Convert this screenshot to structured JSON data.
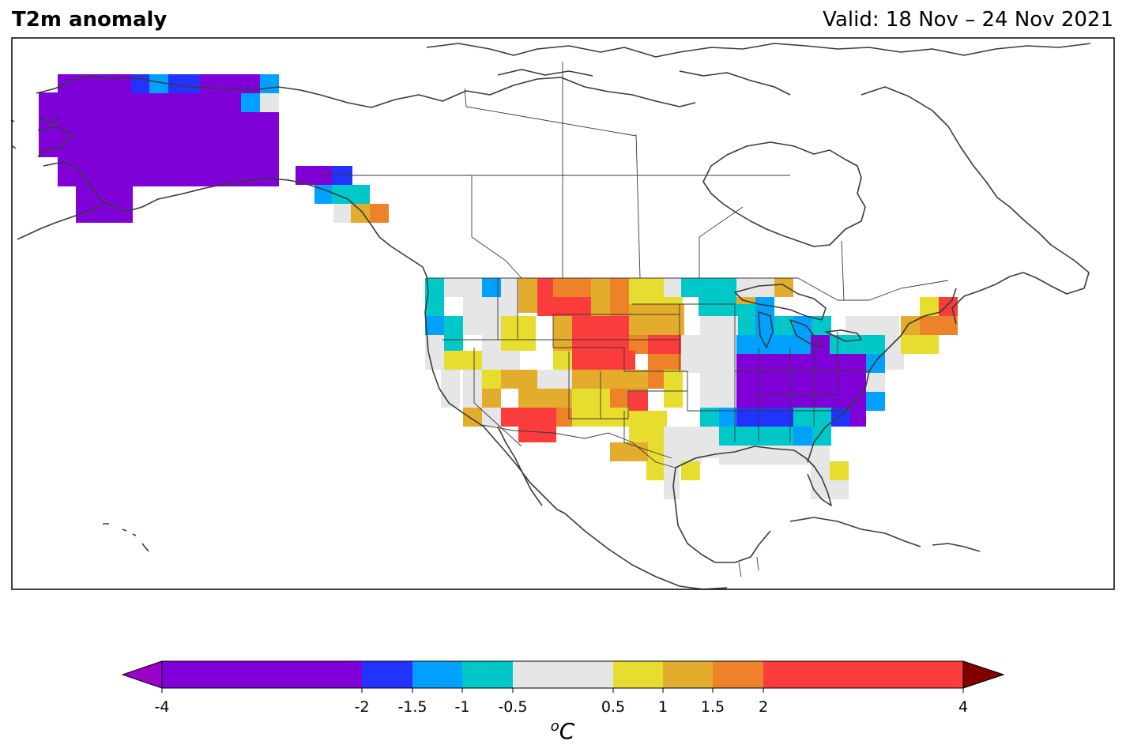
{
  "header": {
    "title": "T2m anomaly",
    "valid": "Valid: 18 Nov – 24 Nov 2021"
  },
  "colorbar": {
    "unit_base": "C",
    "unit_superscript": "o",
    "bounds": [
      -4,
      -2,
      -1.5,
      -1,
      -0.5,
      0.5,
      1,
      1.5,
      2,
      4
    ],
    "tick_labels": [
      "-4",
      "-2",
      "-1.5",
      "-1",
      "-0.5",
      "0.5",
      "1",
      "1.5",
      "2",
      "4"
    ],
    "colors": [
      "#8000d8",
      "#2233ff",
      "#00a0ff",
      "#00c8c8",
      "#e6e6e6",
      "#e6dd2e",
      "#e4ac2c",
      "#ee8228",
      "#fa3c3c"
    ],
    "under_color": "#9b00c8",
    "over_color": "#800000"
  },
  "chart_data": {
    "type": "heatmap",
    "title": "T2m anomaly",
    "subtitle": "Valid: 18 Nov – 24 Nov 2021",
    "colorbar_label": "oC",
    "region": "North America",
    "levels": [
      -4,
      -2,
      -1.5,
      -1,
      -0.5,
      0.5,
      1,
      1.5,
      2,
      4
    ],
    "regions": [
      {
        "area": "Alaska",
        "anomaly_class": "< -2"
      },
      {
        "area": "Southeast Alaska / coastal British Columbia",
        "anomaly_class": "-2 to 2"
      },
      {
        "area": "Pacific Northwest coast",
        "anomaly_class": "-1.5 to -0.5"
      },
      {
        "area": "Northern Rockies / Montana",
        "anomaly_class": "> 2"
      },
      {
        "area": "Colorado / Wyoming / Nebraska",
        "anomaly_class": "> 2"
      },
      {
        "area": "Arizona / southern California",
        "anomaly_class": "1.5 to > 2"
      },
      {
        "area": "Texas / New Mexico",
        "anomaly_class": "0.5 to 1.5"
      },
      {
        "area": "Upper Midwest / Great Lakes",
        "anomaly_class": "-1.5 to -0.5"
      },
      {
        "area": "Ohio Valley / Mid-Atlantic / Appalachians",
        "anomaly_class": "< -2"
      },
      {
        "area": "Southeast US",
        "anomaly_class": "-1.5 to -0.5"
      },
      {
        "area": "Gulf coast / Florida",
        "anomaly_class": "-0.5 to 0.5"
      },
      {
        "area": "New England / Maine",
        "anomaly_class": "1 to > 2"
      }
    ]
  }
}
